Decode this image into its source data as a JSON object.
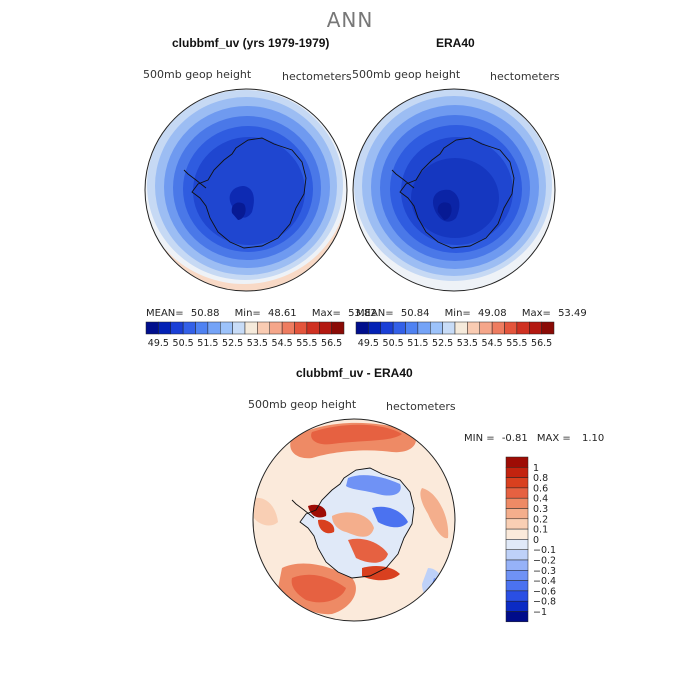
{
  "figure": {
    "title": "ANN"
  },
  "panels": {
    "model": {
      "title": "clubbmf_uv (yrs 1979-1979)",
      "variable": "500mb geop height",
      "units": "hectometers",
      "stats": {
        "mean_label": "MEAN=",
        "mean": "50.88",
        "min_label": "Min=",
        "min": "48.61",
        "max_label": "Max=",
        "max": "53.82"
      }
    },
    "obs": {
      "title": "ERA40",
      "variable": "500mb geop height",
      "units": "hectometers",
      "stats": {
        "mean_label": "MEAN=",
        "mean": "50.84",
        "min_label": "Min=",
        "min": "49.08",
        "max_label": "Max=",
        "max": "53.49"
      }
    },
    "diff": {
      "title": "clubbmf_uv - ERA40",
      "variable": "500mb geop height",
      "units": "hectometers",
      "stats": {
        "min_label": "MIN =",
        "min": "-0.81",
        "max_label": "MAX =",
        "max": "1.10"
      }
    }
  },
  "colorbars": {
    "abs": {
      "colors": [
        "#000e8c",
        "#0321b5",
        "#1a3fd6",
        "#3360e8",
        "#4f82f2",
        "#74a3f7",
        "#9cc2fa",
        "#c8dcf7",
        "#f5eadb",
        "#f9cbb2",
        "#f5a68a",
        "#ee7c60",
        "#e4553c",
        "#cf3122",
        "#b31810",
        "#8a0a05"
      ],
      "tick_labels": [
        "49.5",
        "50.5",
        "51.5",
        "52.5",
        "53.5",
        "54.5",
        "55.5",
        "56.5"
      ]
    },
    "diff": {
      "colors": [
        "#000c8a",
        "#0b2bc4",
        "#2a4fe4",
        "#4b72f0",
        "#6f92f5",
        "#96b2f8",
        "#bed1f8",
        "#e0e9f8",
        "#fbeadb",
        "#f9cfb4",
        "#f4ae8c",
        "#ee8a65",
        "#e66141",
        "#d9401f",
        "#c3230f",
        "#9e0c05"
      ],
      "tick_labels": [
        "1",
        "0.8",
        "0.6",
        "0.4",
        "0.3",
        "0.2",
        "0.1",
        "0",
        "−0.1",
        "−0.2",
        "−0.3",
        "−0.4",
        "−0.6",
        "−0.8",
        "−1"
      ]
    }
  }
}
